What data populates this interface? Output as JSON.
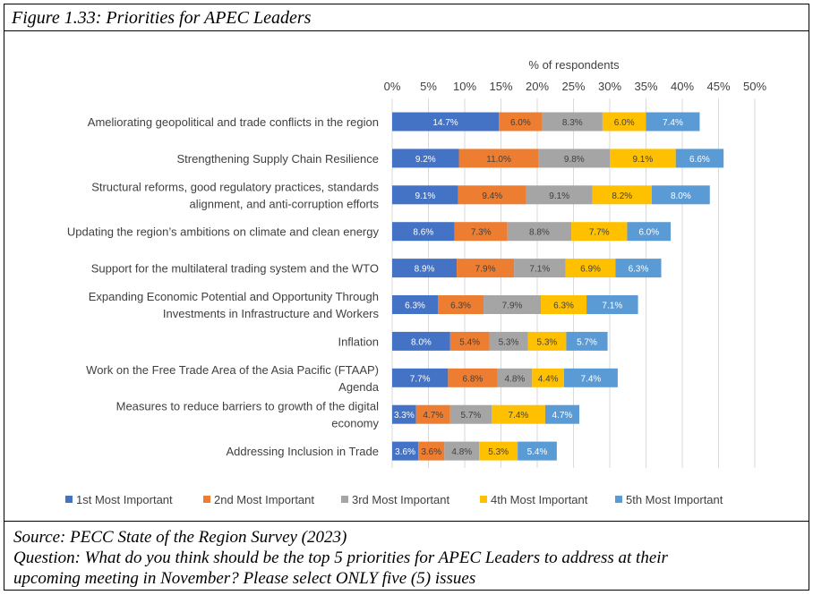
{
  "figure_title": "Figure 1.33: Priorities for APEC Leaders",
  "source": "Source: PECC State of the Region Survey (2023)",
  "question_line1": "Question: What do you think should be the top 5 priorities for APEC Leaders to address at their",
  "question_line2": "upcoming meeting in November?  Please select ONLY five (5) issues",
  "chart_data": {
    "type": "bar",
    "orientation": "horizontal",
    "stacked": true,
    "xlabel": "% of respondents",
    "xlim": [
      0,
      50
    ],
    "x_ticks": [
      "0%",
      "5%",
      "10%",
      "15%",
      "20%",
      "25%",
      "30%",
      "35%",
      "40%",
      "45%",
      "50%"
    ],
    "x_axis_position": "top",
    "grid": true,
    "legend_position": "bottom",
    "categories": [
      [
        "Ameliorating geopolitical and trade conflicts in the region"
      ],
      [
        "Strengthening Supply Chain Resilience"
      ],
      [
        "Structural reforms, good regulatory practices, standards",
        "alignment, and anti-corruption efforts"
      ],
      [
        "Updating the region’s ambitions on climate and clean energy"
      ],
      [
        "Support for the multilateral trading system and the WTO"
      ],
      [
        "Expanding Economic Potential and Opportunity Through",
        "Investments in Infrastructure and Workers"
      ],
      [
        "Inflation"
      ],
      [
        "Work on the Free Trade Area of the Asia Pacific (FTAAP)",
        "Agenda"
      ],
      [
        "Measures to reduce barriers to growth of the digital",
        "economy"
      ],
      [
        "Addressing Inclusion in Trade"
      ]
    ],
    "series": [
      {
        "name": "1st Most Important",
        "color": "#4472C4",
        "values": [
          14.7,
          9.2,
          9.1,
          8.6,
          8.9,
          6.3,
          8.0,
          7.7,
          3.3,
          3.6
        ]
      },
      {
        "name": "2nd Most Important",
        "color": "#ED7D31",
        "values": [
          6.0,
          11.0,
          9.4,
          7.3,
          7.9,
          6.3,
          5.4,
          6.8,
          4.7,
          3.6
        ]
      },
      {
        "name": "3rd Most Important",
        "color": "#A5A5A5",
        "values": [
          8.3,
          9.8,
          9.1,
          8.8,
          7.1,
          7.9,
          5.3,
          4.8,
          5.7,
          4.8
        ]
      },
      {
        "name": "4th Most Important",
        "color": "#FFC000",
        "values": [
          6.0,
          9.1,
          8.2,
          7.7,
          6.9,
          6.3,
          5.3,
          4.4,
          7.4,
          5.3
        ]
      },
      {
        "name": "5th Most Important",
        "color": "#5B9BD5",
        "values": [
          7.4,
          6.6,
          8.0,
          6.0,
          6.3,
          7.1,
          5.7,
          7.4,
          4.7,
          5.4
        ]
      }
    ]
  }
}
